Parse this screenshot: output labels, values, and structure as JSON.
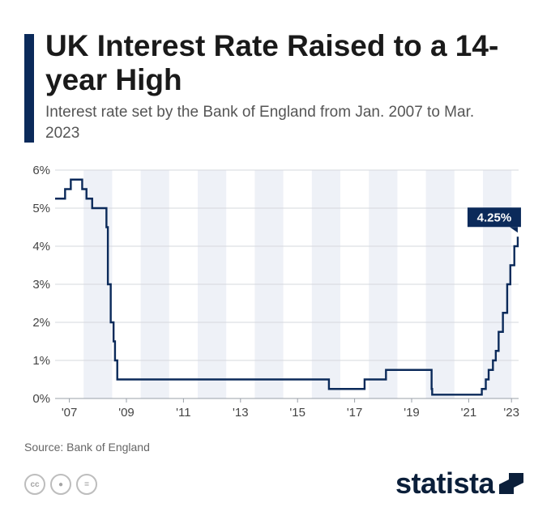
{
  "header": {
    "title": "UK Interest Rate Raised to a 14-year High",
    "subtitle": "Interest rate set by the Bank of England from Jan. 2007 to Mar. 2023"
  },
  "footer": {
    "source": "Source: Bank of England",
    "brand": "statista",
    "license_icons": [
      "cc-icon",
      "attribution-icon",
      "no-derivatives-icon"
    ]
  },
  "colors": {
    "line": "#0b2a5a",
    "band": "#eef1f7",
    "accent": "#0b2a5a"
  },
  "chart_data": {
    "type": "line",
    "title": "UK Interest Rate Raised to a 14-year High",
    "subtitle": "Interest rate set by the Bank of England from Jan. 2007 to Mar. 2023",
    "x_unit": "year",
    "ylim": [
      0,
      6
    ],
    "xlim": [
      2007.0,
      2023.25
    ],
    "yticks": [
      "0%",
      "1%",
      "2%",
      "3%",
      "4%",
      "5%",
      "6%"
    ],
    "xticks": [
      {
        "label": "'07",
        "value": 2007.5
      },
      {
        "label": "'09",
        "value": 2009.5
      },
      {
        "label": "'11",
        "value": 2011.5
      },
      {
        "label": "'13",
        "value": 2013.5
      },
      {
        "label": "'15",
        "value": 2015.5
      },
      {
        "label": "'17",
        "value": 2017.5
      },
      {
        "label": "'19",
        "value": 2019.5
      },
      {
        "label": "'21",
        "value": 2021.5
      },
      {
        "label": "'23",
        "value": 2023.0
      }
    ],
    "grid": true,
    "alternating_year_bands": true,
    "step": true,
    "series": [
      {
        "points": [
          [
            2007.0,
            5.25
          ],
          [
            2007.35,
            5.5
          ],
          [
            2007.55,
            5.75
          ],
          [
            2007.95,
            5.5
          ],
          [
            2008.1,
            5.25
          ],
          [
            2008.3,
            5.0
          ],
          [
            2008.8,
            4.5
          ],
          [
            2008.85,
            3.0
          ],
          [
            2008.95,
            2.0
          ],
          [
            2009.05,
            1.5
          ],
          [
            2009.1,
            1.0
          ],
          [
            2009.18,
            0.5
          ],
          [
            2016.6,
            0.25
          ],
          [
            2017.85,
            0.5
          ],
          [
            2018.6,
            0.75
          ],
          [
            2020.2,
            0.25
          ],
          [
            2020.22,
            0.1
          ],
          [
            2021.96,
            0.25
          ],
          [
            2022.1,
            0.5
          ],
          [
            2022.2,
            0.75
          ],
          [
            2022.35,
            1.0
          ],
          [
            2022.45,
            1.25
          ],
          [
            2022.55,
            1.75
          ],
          [
            2022.7,
            2.25
          ],
          [
            2022.85,
            3.0
          ],
          [
            2022.96,
            3.5
          ],
          [
            2023.1,
            4.0
          ],
          [
            2023.22,
            4.25
          ]
        ]
      }
    ],
    "annotations": [
      {
        "label": "4.25%",
        "x": 2023.22,
        "y": 4.25
      }
    ]
  }
}
